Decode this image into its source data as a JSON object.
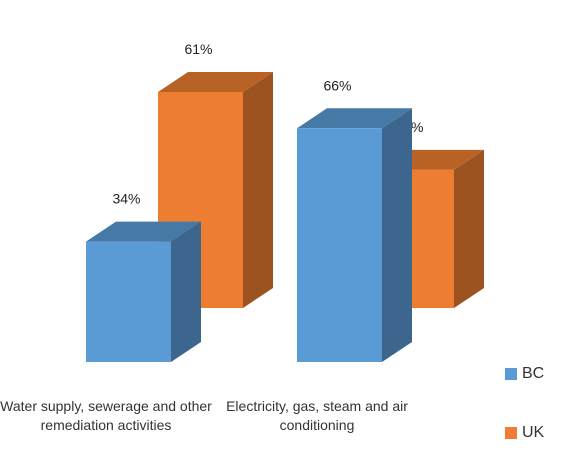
{
  "chart_data": {
    "type": "bar",
    "style": "3d-clustered-column",
    "categories": [
      "Water supply, sewerage and other remediation activities",
      "Electricity, gas, steam and air conditioning"
    ],
    "series": [
      {
        "name": "BC",
        "color": "#5B9BD5",
        "values": [
          34,
          66
        ],
        "labels": [
          "34%",
          "66%"
        ]
      },
      {
        "name": "UK",
        "color": "#ED7D31",
        "values": [
          61,
          39
        ],
        "labels": [
          "61%",
          "39%"
        ]
      }
    ],
    "ylim": [
      0,
      100
    ],
    "grid": false,
    "legend_position": "bottom-right",
    "title": "",
    "xlabel": "",
    "ylabel": ""
  }
}
